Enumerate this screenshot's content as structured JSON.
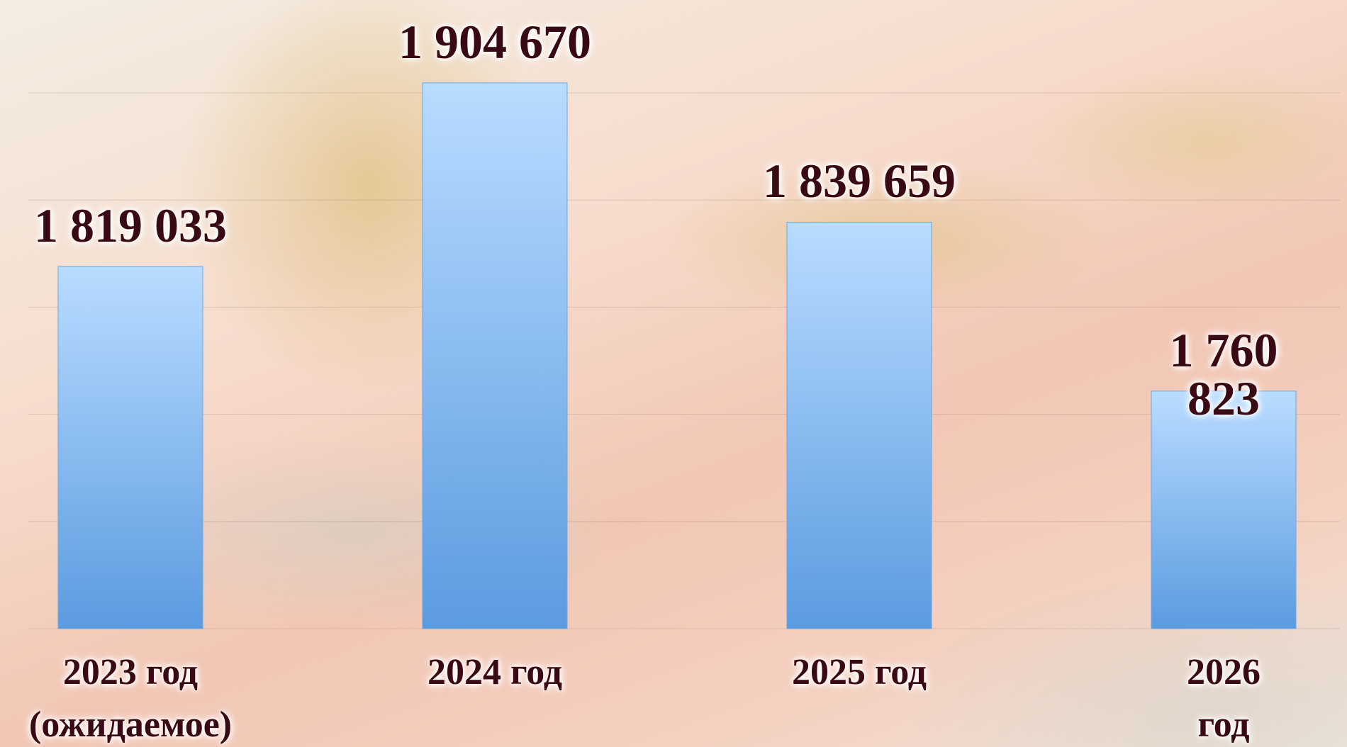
{
  "chart_data": {
    "type": "bar",
    "categories": [
      "2023 год\n(ожидаемое)",
      "2024 год",
      "2025 год",
      "2026 год"
    ],
    "values": [
      1819033,
      1904670,
      1839659,
      1760823
    ],
    "value_labels": [
      "1 819 033",
      "1 904 670",
      "1 839 659",
      "1 760 823"
    ],
    "color": "#6aa8e8",
    "ylim": [
      1650000,
      1900000
    ],
    "yticks": [
      1650000,
      1700000,
      1750000,
      1800000,
      1850000,
      1900000
    ],
    "grid": true
  }
}
